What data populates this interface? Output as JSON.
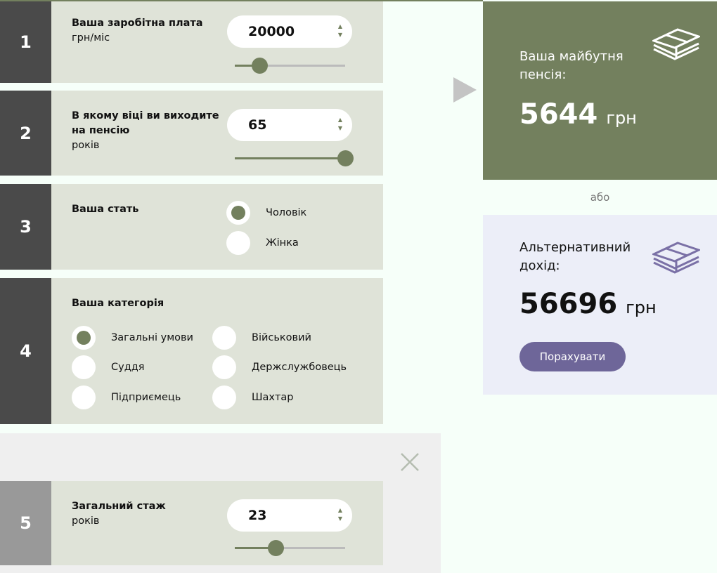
{
  "colors": {
    "accent": "#73805e",
    "dark": "#4a4a4a",
    "purple": "#6e6699",
    "panel": "#dfe3d8"
  },
  "salary": {
    "number": "1",
    "title": "Ваша заробітна плата",
    "unit": "грн/міс",
    "value": "20000",
    "slider_percent": 22
  },
  "age": {
    "number": "2",
    "title": "В якому віці ви виходите на пенсію",
    "unit": "років",
    "value": "65",
    "slider_percent": 100
  },
  "gender": {
    "number": "3",
    "title": "Ваша стать",
    "options": [
      {
        "label": "Чоловік",
        "selected": true
      },
      {
        "label": "Жінка",
        "selected": false
      }
    ]
  },
  "category": {
    "number": "4",
    "title": "Ваша категорія",
    "options": [
      {
        "label": "Загальні умови",
        "selected": true
      },
      {
        "label": "Військовий",
        "selected": false
      },
      {
        "label": "Суддя",
        "selected": false
      },
      {
        "label": "Держслужбовець",
        "selected": false
      },
      {
        "label": "Підприємець",
        "selected": false
      },
      {
        "label": "Шахтар",
        "selected": false
      }
    ]
  },
  "experience": {
    "number": "5",
    "title": "Загальний стаж",
    "unit": "років",
    "value": "23",
    "slider_percent": 37
  },
  "pension": {
    "title": "Ваша майбутня пенсія:",
    "value": "5644",
    "currency": "грн",
    "icon": "money-stack-icon"
  },
  "or_label": "або",
  "alternative": {
    "title": "Альтернативний дохід:",
    "value": "56696",
    "currency": "грн",
    "button": "Порахувати",
    "icon": "money-stack-icon"
  }
}
